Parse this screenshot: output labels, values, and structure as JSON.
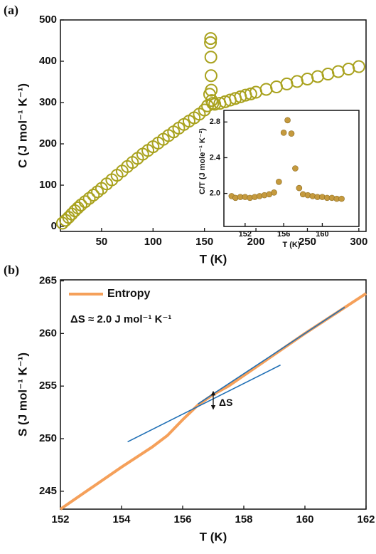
{
  "chart_data": [
    {
      "type": "scatter",
      "panel_label": "(a)",
      "xlabel": "T (K)",
      "ylabel": "C (J mol⁻¹ K⁻¹)",
      "marker": "open",
      "xlim": [
        10,
        307
      ],
      "ylim": [
        -12,
        500
      ],
      "xticks": [
        50,
        100,
        150,
        200,
        250,
        300
      ],
      "yticks": [
        0,
        100,
        200,
        300,
        400,
        500
      ],
      "series": [
        {
          "color": "#a9a21e",
          "x": [
            12,
            15,
            18,
            21,
            24,
            27,
            30,
            34,
            38,
            42,
            46,
            50,
            55,
            60,
            65,
            70,
            75,
            80,
            85,
            90,
            95,
            100,
            105,
            110,
            115,
            120,
            125,
            130,
            135,
            140,
            145,
            150,
            153,
            155,
            155.8,
            156,
            156.2,
            156.4,
            156.6,
            157,
            158,
            160,
            165,
            170,
            175,
            180,
            185,
            190,
            195,
            200,
            210,
            220,
            230,
            240,
            250,
            260,
            270,
            280,
            290,
            300
          ],
          "values": [
            8,
            15,
            22,
            30,
            38,
            45,
            52,
            60,
            68,
            76,
            84,
            92,
            103,
            113,
            124,
            134,
            145,
            155,
            165,
            175,
            184,
            193,
            202,
            211,
            220,
            229,
            238,
            247,
            255,
            263,
            272,
            282,
            292,
            320,
            445,
            455,
            410,
            365,
            330,
            305,
            298,
            296,
            298,
            302,
            306,
            310,
            314,
            318,
            321,
            325,
            332,
            338,
            345,
            351,
            357,
            363,
            369,
            375,
            381,
            387
          ]
        }
      ]
    },
    {
      "type": "scatter",
      "xlabel": "T (K)",
      "ylabel": "C/T (J mole⁻¹ K⁻²)",
      "marker": "filled",
      "xlim": [
        149.8,
        163.8
      ],
      "ylim": [
        1.63,
        2.93
      ],
      "xticks": [
        152,
        156,
        160
      ],
      "yticks": [
        {
          "value": 2,
          "label": "2.0"
        },
        2.4,
        2.8
      ],
      "series": [
        {
          "color": "#c59a3e",
          "x": [
            150.6,
            151,
            151.5,
            152,
            152.5,
            153,
            153.5,
            154,
            154.5,
            155,
            155.5,
            156,
            156.4,
            156.8,
            157.2,
            157.6,
            158,
            158.5,
            159,
            159.5,
            160,
            160.5,
            161,
            161.5,
            162
          ],
          "values": [
            1.97,
            1.95,
            1.96,
            1.96,
            1.95,
            1.96,
            1.97,
            1.98,
            1.99,
            2.01,
            2.13,
            2.68,
            2.82,
            2.67,
            2.28,
            2.06,
            1.99,
            1.98,
            1.97,
            1.96,
            1.96,
            1.95,
            1.95,
            1.94,
            1.94
          ]
        }
      ]
    },
    {
      "type": "line",
      "panel_label": "(b)",
      "xlabel": "T (K)",
      "ylabel": "S (J mol⁻¹ K⁻¹)",
      "xlim": [
        152,
        162
      ],
      "ylim": [
        243.3,
        265.1
      ],
      "xticks": [
        152,
        154,
        156,
        158,
        160,
        162
      ],
      "yticks": [
        245,
        250,
        255,
        260,
        265
      ],
      "legend": "upper left",
      "annotation": "ΔS ≈ 2.0 J mol⁻¹ K⁻¹",
      "arrow_label": "ΔS",
      "arrow": {
        "x": 157,
        "y": [
          252.8,
          254.5
        ]
      },
      "series": [
        {
          "name": "Entropy",
          "color": "#f5a05a",
          "x": [
            152,
            153,
            154,
            155,
            155.5,
            156,
            156.5,
            157,
            157.5,
            158,
            159,
            160,
            161,
            162
          ],
          "values": [
            243.3,
            245.3,
            247.3,
            249.2,
            250.3,
            251.8,
            253.2,
            254.2,
            255.0,
            256.0,
            258.0,
            260.0,
            261.9,
            263.8
          ]
        },
        {
          "color": "#1f6fb5",
          "x": [
            154.2,
            159.2
          ],
          "values": [
            249.7,
            257.0
          ]
        },
        {
          "color": "#1f6fb5",
          "x": [
            156.5,
            161.3
          ],
          "values": [
            253.3,
            262.5
          ]
        }
      ]
    }
  ]
}
